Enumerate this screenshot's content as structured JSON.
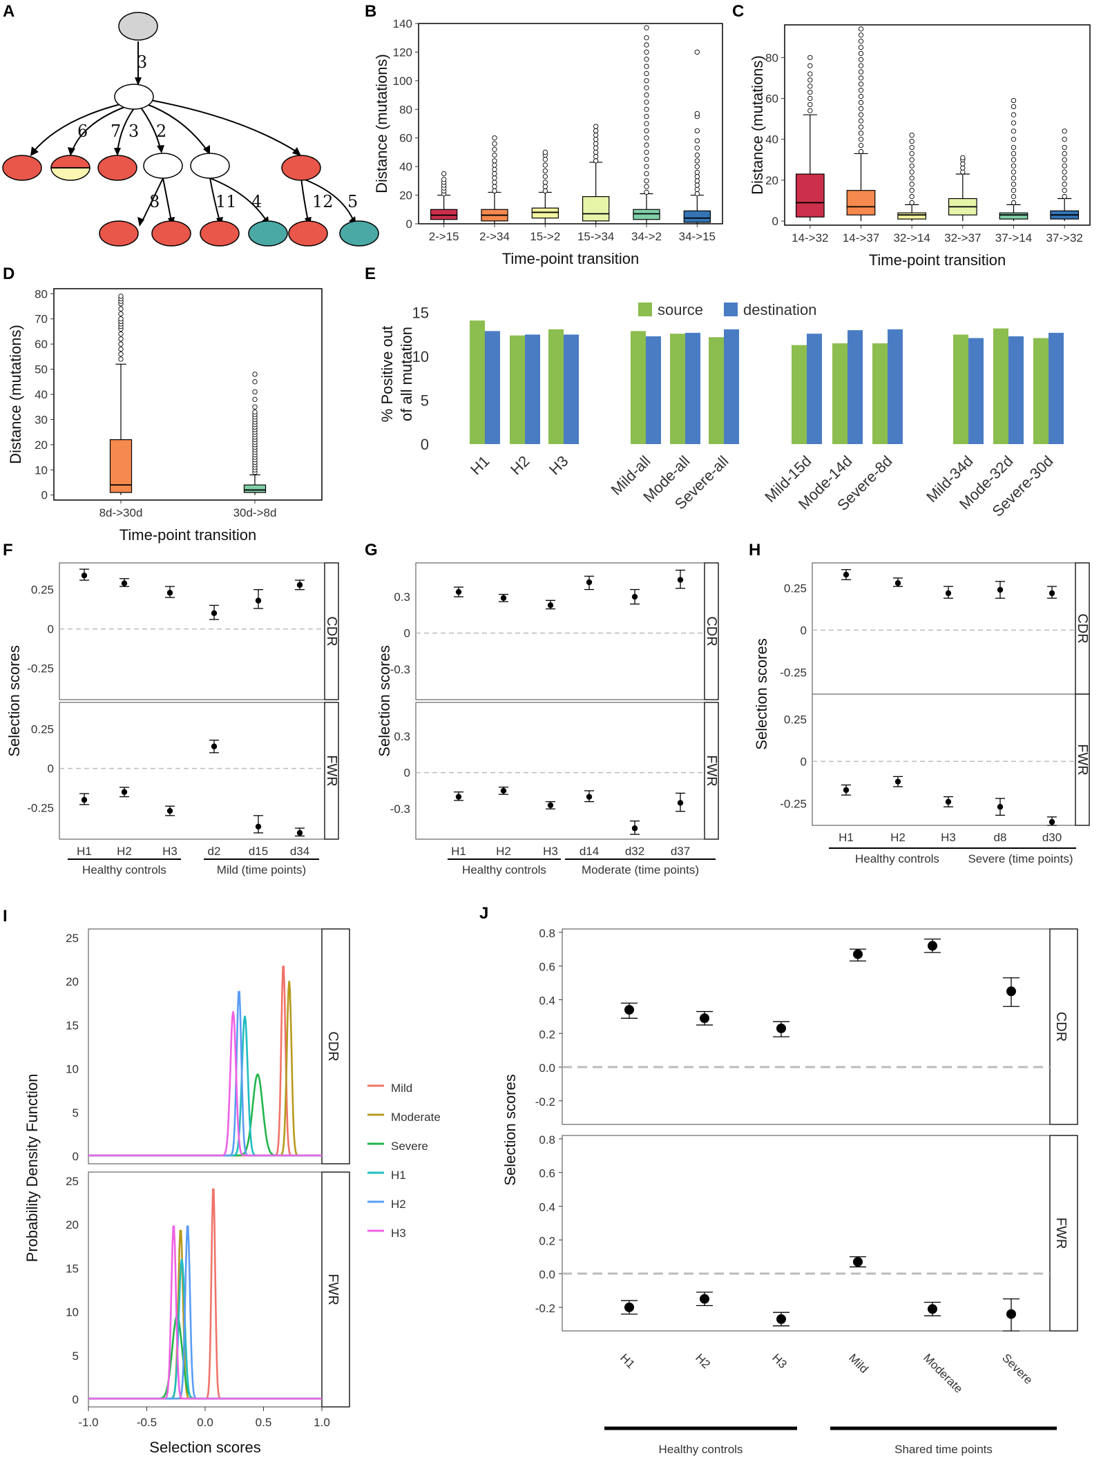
{
  "panels": {
    "A": "A",
    "B": "B",
    "C": "C",
    "D": "D",
    "E": "E",
    "F": "F",
    "G": "G",
    "H": "H",
    "I": "I",
    "J": "J"
  },
  "colors": {
    "red": "#e8574a",
    "yellow": "#fbf6b2",
    "teal": "#4aa9a5",
    "gray": "#d3d3d3",
    "green": "#8cbd4f",
    "blue": "#4a7cc4",
    "box_red": "#cc2f4a",
    "box_orange": "#f5894e",
    "box_yellow": "#f3f3a0",
    "box_lightgreen": "#e6f4a8",
    "box_mint": "#7fcfa8",
    "box_blue": "#3474b5",
    "pdf_mild": "#f0736a",
    "pdf_moderate": "#b79a1e",
    "pdf_severe": "#21b54a",
    "pdf_h1": "#21bcc0",
    "pdf_h2": "#5a9cf4",
    "pdf_h3": "#ef62e4"
  },
  "tree": {
    "edge_labels": [
      "3",
      "6",
      "7",
      "3",
      "2",
      "8",
      "11",
      "4",
      "12",
      "5"
    ]
  },
  "chart_data": [
    {
      "panel": "B",
      "type": "box",
      "xlabel": "Time-point transition",
      "ylabel": "Distance (mutations)",
      "ylim": [
        0,
        140
      ],
      "yticks": [
        0,
        20,
        40,
        60,
        80,
        100,
        120,
        140
      ],
      "categories": [
        "2->15",
        "2->34",
        "15->2",
        "15->34",
        "34->2",
        "34->15"
      ],
      "boxes": [
        {
          "q1": 3,
          "median": 6,
          "q3": 10,
          "whislo": 0,
          "whishi": 20,
          "fliers": [
            21,
            23,
            25,
            27,
            29,
            31,
            35
          ]
        },
        {
          "q1": 2,
          "median": 6,
          "q3": 10,
          "whislo": 0,
          "whishi": 22,
          "fliers": [
            23,
            26,
            29,
            32,
            35,
            38,
            41,
            44,
            48,
            52,
            56,
            60
          ]
        },
        {
          "q1": 4,
          "median": 8,
          "q3": 11,
          "whislo": 0,
          "whishi": 22,
          "fliers": [
            23,
            26,
            29,
            33,
            37,
            41,
            45,
            48,
            50
          ]
        },
        {
          "q1": 2,
          "median": 7,
          "q3": 19,
          "whislo": 0,
          "whishi": 43,
          "fliers": [
            44,
            47,
            50,
            53,
            56,
            59,
            62,
            65,
            68
          ]
        },
        {
          "q1": 3,
          "median": 7,
          "q3": 10,
          "whislo": 0,
          "whishi": 21,
          "fliers": [
            22,
            26,
            30,
            35,
            40,
            45,
            50,
            55,
            60,
            65,
            70,
            75,
            80,
            85,
            90,
            95,
            100,
            105,
            110,
            115,
            120,
            125,
            130,
            137
          ]
        },
        {
          "q1": 1,
          "median": 4,
          "q3": 9,
          "whislo": 0,
          "whishi": 20,
          "fliers": [
            21,
            24,
            27,
            30,
            33,
            36,
            40,
            44,
            48,
            53,
            58,
            65,
            75,
            77,
            120
          ]
        }
      ],
      "box_colors": [
        "#cc2f4a",
        "#f5894e",
        "#f3f3a0",
        "#e6f4a8",
        "#7fcfa8",
        "#3474b5"
      ]
    },
    {
      "panel": "C",
      "type": "box",
      "xlabel": "Time-point transition",
      "ylabel": "Distance (mutations)",
      "ylim": [
        -2,
        96
      ],
      "yticks": [
        0,
        20,
        40,
        60,
        80
      ],
      "categories": [
        "14->32",
        "14->37",
        "32->14",
        "32->37",
        "37->14",
        "37->32"
      ],
      "boxes": [
        {
          "q1": 2,
          "median": 9,
          "q3": 23,
          "whislo": 0,
          "whishi": 52,
          "fliers": [
            54,
            57,
            60,
            63,
            66,
            69,
            72,
            76,
            80
          ]
        },
        {
          "q1": 3,
          "median": 7,
          "q3": 15,
          "whislo": 0,
          "whishi": 33,
          "fliers": [
            34,
            37,
            40,
            43,
            46,
            49,
            52,
            55,
            58,
            61,
            64,
            67,
            70,
            73,
            76,
            79,
            82,
            85,
            88,
            91,
            94
          ]
        },
        {
          "q1": 1,
          "median": 3,
          "q3": 4,
          "whislo": 0,
          "whishi": 8,
          "fliers": [
            9,
            12,
            15,
            18,
            21,
            24,
            27,
            30,
            33,
            36,
            39,
            42
          ]
        },
        {
          "q1": 3,
          "median": 7,
          "q3": 11,
          "whislo": 0,
          "whishi": 23,
          "fliers": [
            24,
            26,
            28,
            30,
            31
          ]
        },
        {
          "q1": 1,
          "median": 3,
          "q3": 4,
          "whislo": 0,
          "whishi": 8,
          "fliers": [
            9,
            12,
            15,
            18,
            21,
            24,
            27,
            30,
            33,
            36,
            40,
            44,
            48,
            52,
            56,
            59
          ]
        },
        {
          "q1": 1,
          "median": 3,
          "q3": 5,
          "whislo": 0,
          "whishi": 11,
          "fliers": [
            12,
            15,
            18,
            21,
            24,
            27,
            30,
            33,
            36,
            40,
            44
          ]
        }
      ],
      "box_colors": [
        "#cc2f4a",
        "#f5894e",
        "#f3f3a0",
        "#e6f4a8",
        "#7fcfa8",
        "#3474b5"
      ]
    },
    {
      "panel": "D",
      "type": "box",
      "xlabel": "Time-point transition",
      "ylabel": "Distance (mutations)",
      "ylim": [
        -2,
        82
      ],
      "yticks": [
        0,
        10,
        20,
        30,
        40,
        50,
        60,
        70,
        80
      ],
      "categories": [
        "8d->30d",
        "30d->8d"
      ],
      "boxes": [
        {
          "q1": 1,
          "median": 4,
          "q3": 22,
          "whislo": 0,
          "whishi": 52,
          "fliers": [
            54,
            56,
            58,
            60,
            62,
            64,
            66,
            67,
            68,
            69,
            70,
            72,
            74,
            76,
            77,
            78,
            79
          ]
        },
        {
          "q1": 1,
          "median": 2,
          "q3": 4,
          "whislo": 0,
          "whishi": 8,
          "fliers": [
            9,
            10,
            11,
            12,
            13,
            14,
            15,
            16,
            17,
            18,
            19,
            20,
            21,
            22,
            23,
            24,
            25,
            26,
            27,
            28,
            29,
            30,
            31,
            32,
            33,
            35,
            38,
            41,
            45,
            48
          ]
        }
      ],
      "box_colors": [
        "#f5894e",
        "#7fcfa8"
      ]
    },
    {
      "panel": "E",
      "type": "bar",
      "ylabel_line1": "% Positive out",
      "ylabel_line2": "of all mutation",
      "ylim": [
        0,
        16
      ],
      "yticks": [
        0,
        5,
        10,
        15
      ],
      "categories": [
        "H1",
        "H2",
        "H3",
        "Mild-all",
        "Mode-all",
        "Severe-all",
        "Mild-15d",
        "Mode-14d",
        "Severe-8d",
        "Mild-34d",
        "Mode-32d",
        "Severe-30d"
      ],
      "groups": [
        3,
        3,
        3,
        3
      ],
      "series": [
        {
          "name": "source",
          "values": [
            14.1,
            12.4,
            13.1,
            12.9,
            12.6,
            12.2,
            11.3,
            11.5,
            11.5,
            12.5,
            13.2,
            12.1
          ]
        },
        {
          "name": "destination",
          "values": [
            12.9,
            12.5,
            12.5,
            12.3,
            12.7,
            13.1,
            12.6,
            13.0,
            13.1,
            12.1,
            12.3,
            12.7
          ]
        }
      ]
    },
    {
      "panel": "F",
      "type": "pointrange",
      "ylabel": "Selection scores",
      "ylim": [
        -0.45,
        0.42
      ],
      "yticks": [
        0.25,
        0,
        -0.25
      ],
      "ytick_labels": [
        "0.25",
        "0",
        "-0.25"
      ],
      "categories": [
        "H1",
        "H2",
        "H3",
        "d2",
        "d15",
        "d34"
      ],
      "group_labels": [
        "Healthy controls",
        "Mild (time points)"
      ],
      "facets": [
        {
          "name": "CDR",
          "values": [
            0.34,
            0.29,
            0.23,
            0.1,
            0.18,
            0.28
          ],
          "lo": [
            0.31,
            0.27,
            0.2,
            0.06,
            0.13,
            0.25
          ],
          "hi": [
            0.38,
            0.32,
            0.27,
            0.15,
            0.25,
            0.31
          ]
        },
        {
          "name": "FWR",
          "values": [
            -0.2,
            -0.15,
            -0.27,
            0.14,
            -0.37,
            -0.41
          ],
          "lo": [
            -0.23,
            -0.18,
            -0.3,
            0.1,
            -0.41,
            -0.43
          ],
          "hi": [
            -0.16,
            -0.12,
            -0.24,
            0.18,
            -0.3,
            -0.38
          ]
        }
      ]
    },
    {
      "panel": "G",
      "type": "pointrange",
      "ylabel": "Selection scores",
      "ylim": [
        -0.55,
        0.58
      ],
      "yticks": [
        0.3,
        0,
        -0.3
      ],
      "ytick_labels": [
        "0.3",
        "0",
        "-0.3"
      ],
      "categories": [
        "H1",
        "H2",
        "H3",
        "d14",
        "d32",
        "d37"
      ],
      "group_labels": [
        "Healthy controls",
        "Moderate (time points)"
      ],
      "facets": [
        {
          "name": "CDR",
          "values": [
            0.34,
            0.29,
            0.23,
            0.42,
            0.3,
            0.44
          ],
          "lo": [
            0.3,
            0.26,
            0.2,
            0.36,
            0.24,
            0.37
          ],
          "hi": [
            0.38,
            0.32,
            0.27,
            0.47,
            0.36,
            0.52
          ]
        },
        {
          "name": "FWR",
          "values": [
            -0.2,
            -0.15,
            -0.27,
            -0.2,
            -0.46,
            -0.25
          ],
          "lo": [
            -0.23,
            -0.18,
            -0.3,
            -0.24,
            -0.51,
            -0.32
          ],
          "hi": [
            -0.16,
            -0.12,
            -0.24,
            -0.15,
            -0.4,
            -0.17
          ]
        }
      ]
    },
    {
      "panel": "H",
      "type": "pointrange",
      "ylabel": "Selection scores",
      "ylim": [
        -0.38,
        0.4
      ],
      "yticks": [
        0.25,
        0,
        -0.25
      ],
      "ytick_labels": [
        "0.25",
        "0",
        "-0.25"
      ],
      "categories": [
        "H1",
        "H2",
        "H3",
        "d8",
        "d30"
      ],
      "group_labels": [
        "Healthy controls",
        "Severe (time points)"
      ],
      "facets": [
        {
          "name": "CDR",
          "values": [
            0.33,
            0.28,
            0.22,
            0.24,
            0.22
          ],
          "lo": [
            0.3,
            0.26,
            0.19,
            0.19,
            0.19
          ],
          "hi": [
            0.36,
            0.31,
            0.26,
            0.29,
            0.26
          ]
        },
        {
          "name": "FWR",
          "values": [
            -0.17,
            -0.12,
            -0.24,
            -0.27,
            -0.36
          ],
          "lo": [
            -0.2,
            -0.15,
            -0.27,
            -0.32,
            -0.38
          ],
          "hi": [
            -0.14,
            -0.09,
            -0.21,
            -0.22,
            -0.33
          ]
        }
      ]
    },
    {
      "panel": "I",
      "type": "line",
      "xlabel": "Selection scores",
      "ylabel": "Probability Density Function",
      "xlim": [
        -1.0,
        1.0
      ],
      "xticks": [
        -1.0,
        -0.5,
        0.0,
        0.5,
        1.0
      ],
      "xtick_labels": [
        "-1.0",
        "-0.5",
        "0.0",
        "0.5",
        "1.0"
      ],
      "ylim": [
        0,
        25
      ],
      "yticks": [
        0,
        5,
        10,
        15,
        20,
        25
      ],
      "legend": [
        "Mild",
        "Moderate",
        "Severe",
        "H1",
        "H2",
        "H3"
      ],
      "facets": [
        {
          "name": "CDR",
          "series": [
            {
              "name": "Mild",
              "mean": 0.67,
              "sd": 0.018,
              "peak": 22
            },
            {
              "name": "Moderate",
              "mean": 0.72,
              "sd": 0.02,
              "peak": 20
            },
            {
              "name": "Severe",
              "mean": 0.45,
              "sd": 0.043,
              "peak": 9.3
            },
            {
              "name": "H1",
              "mean": 0.34,
              "sd": 0.025,
              "peak": 16
            },
            {
              "name": "H2",
              "mean": 0.29,
              "sd": 0.02,
              "peak": 19
            },
            {
              "name": "H3",
              "mean": 0.24,
              "sd": 0.024,
              "peak": 16.5
            }
          ]
        },
        {
          "name": "FWR",
          "series": [
            {
              "name": "Mild",
              "mean": 0.07,
              "sd": 0.016,
              "peak": 24.5
            },
            {
              "name": "Moderate",
              "mean": -0.21,
              "sd": 0.02,
              "peak": 19.5
            },
            {
              "name": "Severe",
              "mean": -0.24,
              "sd": 0.042,
              "peak": 9.5
            },
            {
              "name": "H1",
              "mean": -0.2,
              "sd": 0.025,
              "peak": 16
            },
            {
              "name": "H2",
              "mean": -0.15,
              "sd": 0.02,
              "peak": 20
            },
            {
              "name": "H3",
              "mean": -0.27,
              "sd": 0.02,
              "peak": 20
            }
          ]
        }
      ]
    },
    {
      "panel": "J",
      "type": "pointrange",
      "ylabel": "Selection scores",
      "ylim": [
        -0.34,
        0.82
      ],
      "yticks": [
        0.8,
        0.6,
        0.4,
        0.2,
        0.0,
        -0.2
      ],
      "ytick_labels": [
        "0.8",
        "0.6",
        "0.4",
        "0.2",
        "0.0",
        "-0.2"
      ],
      "categories": [
        "H1",
        "H2",
        "H3",
        "Mild",
        "Moderate",
        "Severe"
      ],
      "group_labels": [
        "Healthy controls",
        "Shared time points"
      ],
      "facets": [
        {
          "name": "CDR",
          "values": [
            0.34,
            0.29,
            0.23,
            0.67,
            0.72,
            0.45
          ],
          "lo": [
            0.29,
            0.25,
            0.18,
            0.63,
            0.68,
            0.36
          ],
          "hi": [
            0.38,
            0.33,
            0.27,
            0.7,
            0.76,
            0.53
          ]
        },
        {
          "name": "FWR",
          "values": [
            -0.2,
            -0.15,
            -0.27,
            0.07,
            -0.21,
            -0.24
          ],
          "lo": [
            -0.24,
            -0.19,
            -0.31,
            0.04,
            -0.25,
            -0.34
          ],
          "hi": [
            -0.16,
            -0.11,
            -0.23,
            0.1,
            -0.17,
            -0.15
          ]
        }
      ]
    }
  ]
}
